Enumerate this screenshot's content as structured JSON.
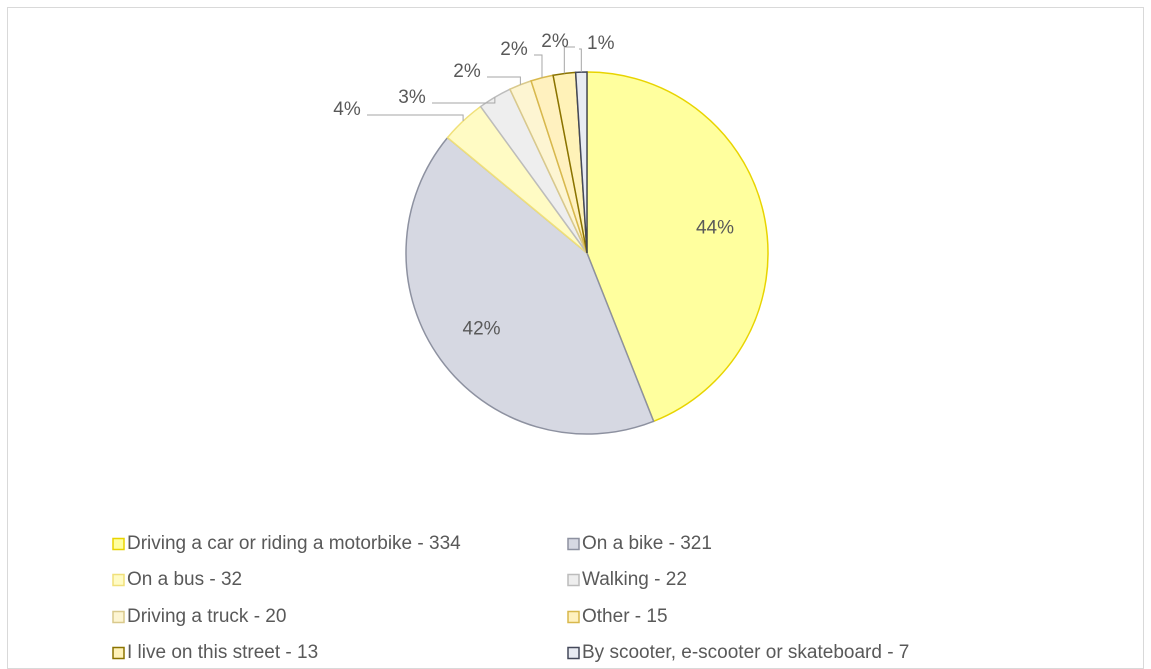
{
  "chart_data": {
    "type": "pie",
    "categories": [
      "Driving a car or riding a motorbike - 334",
      "On a bike - 321",
      "On a bus - 32",
      "Walking - 22",
      "Driving a truck - 20",
      "Other - 15",
      "I live on this street - 13",
      "By scooter, e-scooter or skateboard - 7"
    ],
    "values": [
      44,
      42,
      4,
      3,
      2,
      2,
      2,
      1
    ],
    "value_labels": [
      "44%",
      "42%",
      "4%",
      "3%",
      "2%",
      "2%",
      "2%",
      "1%"
    ],
    "colors": [
      "#ffff9e",
      "#d6d8e2",
      "#fffbc4",
      "#eeeeee",
      "#fdf5d2",
      "#fff1bf",
      "#fff2b8",
      "#e8ebf2"
    ],
    "edge_colors": [
      "#e8d400",
      "#8d91a0",
      "#f0e07a",
      "#bcbcbc",
      "#d9c98c",
      "#d8b84c",
      "#8a7300",
      "#44495a"
    ],
    "legend": "bottom"
  }
}
